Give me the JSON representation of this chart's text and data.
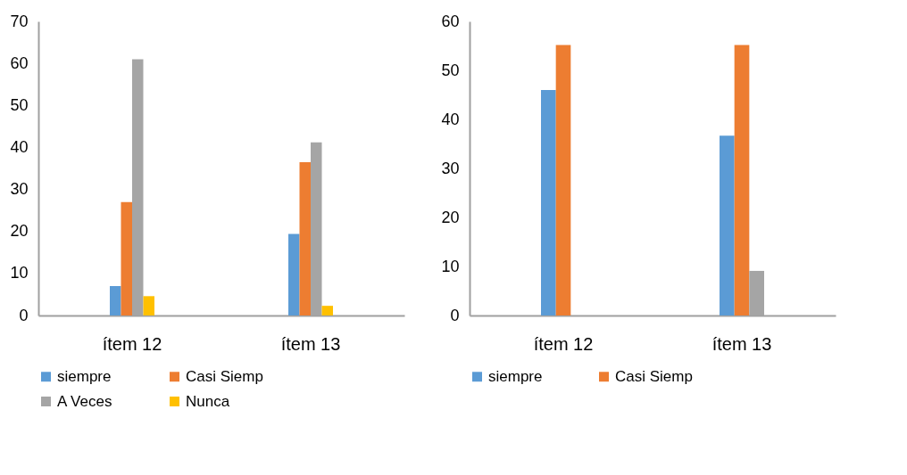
{
  "chart_data": [
    {
      "type": "bar",
      "categories": [
        "ítem 12",
        "ítem 13"
      ],
      "ylim": [
        0,
        70
      ],
      "yticks": [
        0,
        10,
        20,
        30,
        40,
        50,
        60,
        70
      ],
      "grid": false,
      "legend": "bottom",
      "series": [
        {
          "name": "siempre",
          "color": "#5b9bd5",
          "values": [
            7,
            19.4
          ]
        },
        {
          "name": "Casi Siemp",
          "color": "#ed7d31",
          "values": [
            27,
            36.5
          ]
        },
        {
          "name": "A Veces",
          "color": "#a5a5a5",
          "values": [
            61,
            41.2
          ]
        },
        {
          "name": "Nunca",
          "color": "#ffc000",
          "values": [
            4.6,
            2.3
          ]
        }
      ]
    },
    {
      "type": "bar",
      "categories": [
        "ítem 12",
        "ítem 13"
      ],
      "ylim": [
        0,
        60
      ],
      "yticks": [
        0,
        10,
        20,
        30,
        40,
        50,
        60
      ],
      "grid": false,
      "legend": "bottom",
      "series": [
        {
          "name": "siempre",
          "color": "#5b9bd5",
          "values": [
            46,
            36.7
          ]
        },
        {
          "name": "Casi Siemp",
          "color": "#ed7d31",
          "values": [
            55.2,
            55.2
          ]
        },
        {
          "color": "#a5a5a5",
          "values": [
            null,
            9.1
          ]
        }
      ]
    }
  ]
}
